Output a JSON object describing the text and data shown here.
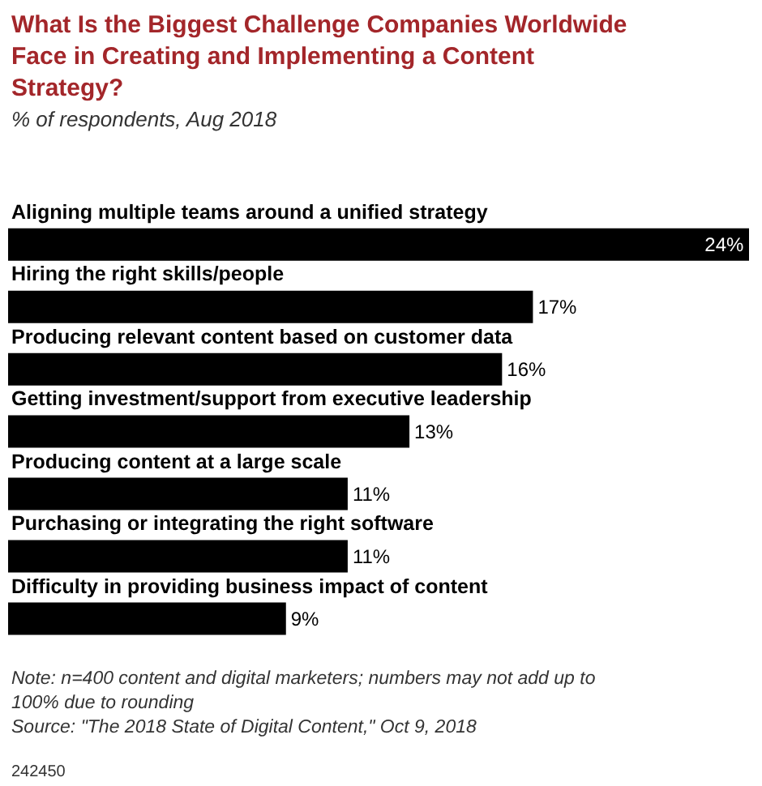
{
  "chart_data": {
    "type": "bar",
    "orientation": "horizontal",
    "title": "What Is the Biggest Challenge Companies Worldwide Face in Creating and Implementing a Content Strategy?",
    "subtitle": "% of respondents, Aug 2018",
    "categories": [
      "Aligning multiple teams around a unified strategy",
      "Hiring the right skills/people",
      "Producing relevant content based on customer data",
      "Getting investment/support from executive leadership",
      "Producing content at a large scale",
      "Purchasing or integrating the right software",
      "Difficulty in providing business impact of content"
    ],
    "values": [
      24,
      17,
      16,
      13,
      11,
      11,
      9
    ],
    "value_labels": [
      "24%",
      "17%",
      "16%",
      "13%",
      "11%",
      "11%",
      "9%"
    ],
    "color": "#000000",
    "annotations": [
      "Note: n=400 content and digital marketers; numbers may not add up to 100% due to rounding",
      "Source: \"The 2018 State of Digital Content,\" Oct 9, 2018",
      "242450"
    ],
    "legend": false
  }
}
